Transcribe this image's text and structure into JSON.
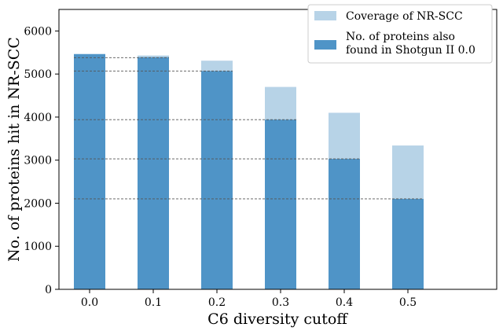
{
  "chart_data": {
    "type": "bar",
    "title": "",
    "xlabel": "C6 diversity cutoff",
    "ylabel": "No. of proteins hit in NR-SCC",
    "categories": [
      "0.0",
      "0.1",
      "0.2",
      "0.3",
      "0.4",
      "0.5"
    ],
    "yticks": [
      "0",
      "1000",
      "2000",
      "3000",
      "4000",
      "5000",
      "6000"
    ],
    "ylim": [
      0,
      6500
    ],
    "series": [
      {
        "name": "Coverage of NR-SCC",
        "values": [
          5470,
          5430,
          5310,
          4700,
          4100,
          3340
        ]
      },
      {
        "name": "No. of proteins also found in Shotgun II 0.0",
        "values": [
          5460,
          5390,
          5070,
          3940,
          3030,
          2100
        ]
      }
    ],
    "reference_lines": [
      5380,
      5070,
      3940,
      3030,
      2100
    ],
    "legend": {
      "position": "top-right",
      "entries": [
        "Coverage of NR-SCC",
        "No. of proteins also",
        "found in Shotgun II 0.0"
      ]
    },
    "grid": false,
    "colors": {
      "coverage": "#b7d3e7",
      "found": "#4f94c7",
      "reference_line": "#555555"
    }
  }
}
